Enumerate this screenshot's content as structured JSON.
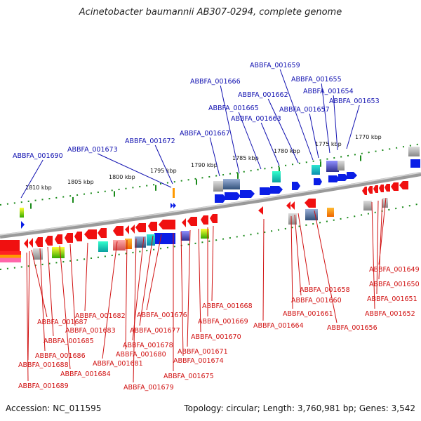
{
  "title": "Acinetobacter baumannii AB307-0294, complete genome",
  "footer": {
    "accession": "Accession: NC_011595",
    "summary": "Topology: circular; Length: 3,760,981 bp; Genes: 3,542"
  },
  "scale_labels": [
    "1770 kbp",
    "1775 kbp",
    "1780 kbp",
    "1785 kbp",
    "1790 kbp",
    "1795 kbp",
    "1800 kbp",
    "1805 kbp",
    "1810 kbp"
  ],
  "colors": {
    "forward_label": "#1010b0",
    "reverse_label": "#d01010",
    "forward_gene": "#0a1ee6",
    "reverse_gene": "#f01010",
    "backbone": "#999999",
    "scale_tick": "#1a8a1a"
  },
  "genes_forward": [
    {
      "id": "ABBFA_001653",
      "label": "ABBFA_001653"
    },
    {
      "id": "ABBFA_001654",
      "label": "ABBFA_001654"
    },
    {
      "id": "ABBFA_001655",
      "label": "ABBFA_001655"
    },
    {
      "id": "ABBFA_001657",
      "label": "ABBFA_001657"
    },
    {
      "id": "ABBFA_001659",
      "label": "ABBFA_001659"
    },
    {
      "id": "ABBFA_001662",
      "label": "ABBFA_001662"
    },
    {
      "id": "ABBFA_001663",
      "label": "ABBFA_001663"
    },
    {
      "id": "ABBFA_001665",
      "label": "ABBFA_001665"
    },
    {
      "id": "ABBFA_001666",
      "label": "ABBFA_001666"
    },
    {
      "id": "ABBFA_001667",
      "label": "ABBFA_001667"
    },
    {
      "id": "ABBFA_001672",
      "label": "ABBFA_001672"
    },
    {
      "id": "ABBFA_001673",
      "label": "ABBFA_001673"
    },
    {
      "id": "ABBFA_001690",
      "label": "ABBFA_001690"
    }
  ],
  "genes_reverse": [
    {
      "id": "ABBFA_001649",
      "label": "ABBFA_001649"
    },
    {
      "id": "ABBFA_001650",
      "label": "ABBFA_001650"
    },
    {
      "id": "ABBFA_001651",
      "label": "ABBFA_001651"
    },
    {
      "id": "ABBFA_001652",
      "label": "ABBFA_001652"
    },
    {
      "id": "ABBFA_001656",
      "label": "ABBFA_001656"
    },
    {
      "id": "ABBFA_001658",
      "label": "ABBFA_001658"
    },
    {
      "id": "ABBFA_001660",
      "label": "ABBFA_001660"
    },
    {
      "id": "ABBFA_001661",
      "label": "ABBFA_001661"
    },
    {
      "id": "ABBFA_001664",
      "label": "ABBFA_001664"
    },
    {
      "id": "ABBFA_001668",
      "label": "ABBFA_001668"
    },
    {
      "id": "ABBFA_001669",
      "label": "ABBFA_001669"
    },
    {
      "id": "ABBFA_001670",
      "label": "ABBFA_001670"
    },
    {
      "id": "ABBFA_001671",
      "label": "ABBFA_001671"
    },
    {
      "id": "ABBFA_001674",
      "label": "ABBFA_001674"
    },
    {
      "id": "ABBFA_001675",
      "label": "ABBFA_001675"
    },
    {
      "id": "ABBFA_001676",
      "label": "ABBFA_001676"
    },
    {
      "id": "ABBFA_001677",
      "label": "ABBFA_001677"
    },
    {
      "id": "ABBFA_001678",
      "label": "ABBFA_001678"
    },
    {
      "id": "ABBFA_001679",
      "label": "ABBFA_001679"
    },
    {
      "id": "ABBFA_001680",
      "label": "ABBFA_001680"
    },
    {
      "id": "ABBFA_001681",
      "label": "ABBFA_001681"
    },
    {
      "id": "ABBFA_001682",
      "label": "ABBFA_001682"
    },
    {
      "id": "ABBFA_001683",
      "label": "ABBFA_001683"
    },
    {
      "id": "ABBFA_001684",
      "label": "ABBFA_001684"
    },
    {
      "id": "ABBFA_001685",
      "label": "ABBFA_001685"
    },
    {
      "id": "ABBFA_001686",
      "label": "ABBFA_001686"
    },
    {
      "id": "ABBFA_001687",
      "label": "ABBFA_001687"
    },
    {
      "id": "ABBFA_001688",
      "label": "ABBFA_001688"
    },
    {
      "id": "ABBFA_001689",
      "label": "ABBFA_001689"
    }
  ]
}
